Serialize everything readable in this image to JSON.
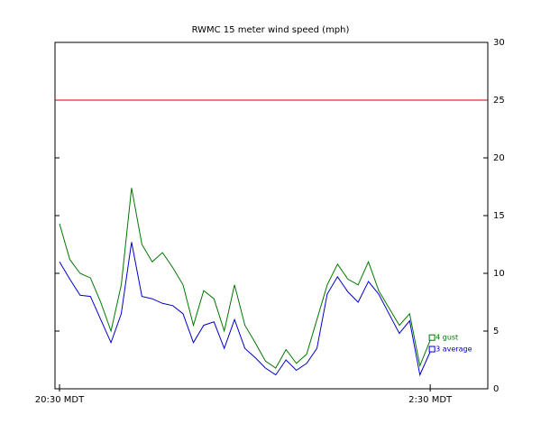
{
  "chart_data": {
    "type": "line",
    "title": "RWMC 15 meter wind speed (mph)",
    "categories": [
      "20:30 MDT",
      null,
      null,
      null,
      null,
      null,
      null,
      null,
      null,
      null,
      null,
      null,
      null,
      null,
      null,
      null,
      null,
      null,
      null,
      null,
      null,
      null,
      null,
      null,
      null,
      null,
      null,
      null,
      null,
      null,
      null,
      null,
      null,
      null,
      null,
      null,
      "2:30 MDT"
    ],
    "series": [
      {
        "name": "4 gust",
        "color": "#007700",
        "values": [
          14.3,
          11.2,
          10,
          9.6,
          7.5,
          5,
          9,
          17.4,
          12.5,
          11,
          11.8,
          10.5,
          9,
          5.5,
          8.5,
          7.8,
          5,
          9,
          5.5,
          4,
          2.4,
          1.8,
          3.4,
          2.2,
          3,
          6,
          9,
          10.8,
          9.5,
          9,
          11,
          8.5,
          7,
          5.5,
          6.5,
          2,
          4.2
        ]
      },
      {
        "name": "3 average",
        "color": "#0000cc",
        "values": [
          11,
          9.5,
          8.1,
          8,
          6,
          4,
          6.5,
          12.7,
          8,
          7.8,
          7.4,
          7.2,
          6.5,
          4,
          5.5,
          5.8,
          3.5,
          6,
          3.5,
          2.7,
          1.8,
          1.2,
          2.5,
          1.6,
          2.2,
          3.5,
          8.2,
          9.7,
          8.4,
          7.5,
          9.3,
          8.2,
          6.5,
          4.8,
          5.9,
          1.2,
          3.2
        ]
      }
    ],
    "reference_line": {
      "value": 25,
      "color": "#cc0000"
    },
    "ylim": [
      0,
      30
    ],
    "yticks": [
      0,
      5,
      10,
      15,
      20,
      25,
      30
    ],
    "grid": false
  }
}
